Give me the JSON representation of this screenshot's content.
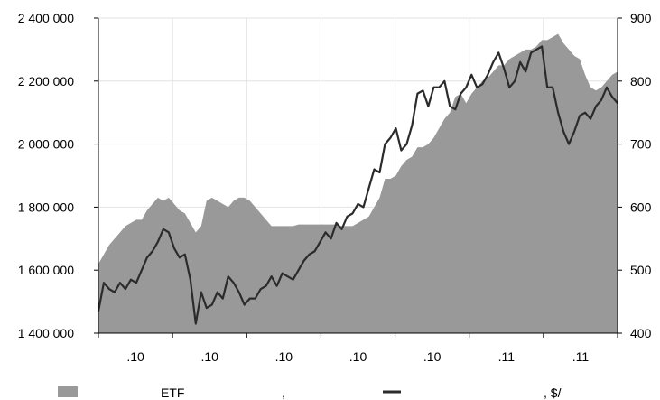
{
  "chart_data": {
    "type": "area+line",
    "title": "",
    "xlabel": "",
    "ylabel": "",
    "ylim": [
      1400000,
      2400000
    ],
    "ylim_right": [
      400,
      900
    ],
    "y_ticks": [
      1400000,
      1600000,
      1800000,
      2000000,
      2200000,
      2400000
    ],
    "y_tick_labels": [
      "1 400 000",
      "1 600 000",
      "1 800 000",
      "2 000 000",
      "2 200 000",
      "2 400 000"
    ],
    "y_right_ticks": [
      400,
      500,
      600,
      700,
      800,
      900
    ],
    "y_right_tick_labels": [
      "400",
      "500",
      "600",
      "700",
      "800",
      "900"
    ],
    "x_tick_labels": [
      ".10",
      ".10",
      ".10",
      ".10",
      ".10",
      ".11",
      ".11"
    ],
    "grid": true,
    "legend": {
      "position": "bottom",
      "entries": [
        {
          "label": "ETF",
          "extra": ",",
          "type": "area",
          "color": "#999999"
        },
        {
          "label": ", $/",
          "type": "line",
          "color": "#2b2b2b"
        }
      ]
    },
    "series": [
      {
        "type": "area",
        "axis": "left",
        "color": "#999999",
        "x": [
          0,
          1,
          2,
          3,
          4,
          5,
          6,
          7,
          8,
          9,
          10,
          11,
          12,
          13,
          14,
          15,
          16,
          17,
          18,
          19,
          20,
          21,
          22,
          23,
          24,
          25,
          26,
          27,
          28,
          29,
          30,
          31,
          32,
          33,
          34,
          35,
          36,
          37,
          38,
          39,
          40,
          41,
          42,
          43,
          44,
          45,
          46,
          47,
          48,
          49,
          50,
          51,
          52,
          53,
          54,
          55,
          56,
          57,
          58,
          59,
          60,
          61,
          62,
          63,
          64,
          65,
          66,
          67,
          68,
          69,
          70,
          71,
          72,
          73,
          74,
          75,
          76,
          77,
          78,
          79,
          80,
          81,
          82,
          83,
          84,
          85,
          86,
          87,
          88,
          89,
          90,
          91,
          92,
          93,
          94,
          95,
          96
        ],
        "values": [
          1620000,
          1650000,
          1680000,
          1700000,
          1720000,
          1740000,
          1750000,
          1760000,
          1760000,
          1790000,
          1810000,
          1830000,
          1820000,
          1830000,
          1810000,
          1790000,
          1780000,
          1750000,
          1720000,
          1740000,
          1820000,
          1830000,
          1820000,
          1810000,
          1800000,
          1820000,
          1830000,
          1830000,
          1820000,
          1800000,
          1780000,
          1760000,
          1740000,
          1740000,
          1740000,
          1740000,
          1740000,
          1745000,
          1745000,
          1745000,
          1745000,
          1745000,
          1745000,
          1745000,
          1745000,
          1740000,
          1740000,
          1740000,
          1750000,
          1760000,
          1770000,
          1800000,
          1830000,
          1890000,
          1890000,
          1900000,
          1930000,
          1950000,
          1960000,
          1990000,
          1990000,
          2000000,
          2020000,
          2050000,
          2080000,
          2100000,
          2150000,
          2160000,
          2130000,
          2160000,
          2180000,
          2200000,
          2210000,
          2230000,
          2250000,
          2250000,
          2270000,
          2280000,
          2290000,
          2300000,
          2300000,
          2310000,
          2330000,
          2330000,
          2340000,
          2350000,
          2320000,
          2300000,
          2280000,
          2270000,
          2220000,
          2180000,
          2170000,
          2180000,
          2200000,
          2220000,
          2230000
        ]
      },
      {
        "type": "line",
        "axis": "right",
        "color": "#2b2b2b",
        "x": [
          0,
          1,
          2,
          3,
          4,
          5,
          6,
          7,
          8,
          9,
          10,
          11,
          12,
          13,
          14,
          15,
          16,
          17,
          18,
          19,
          20,
          21,
          22,
          23,
          24,
          25,
          26,
          27,
          28,
          29,
          30,
          31,
          32,
          33,
          34,
          35,
          36,
          37,
          38,
          39,
          40,
          41,
          42,
          43,
          44,
          45,
          46,
          47,
          48,
          49,
          50,
          51,
          52,
          53,
          54,
          55,
          56,
          57,
          58,
          59,
          60,
          61,
          62,
          63,
          64,
          65,
          66,
          67,
          68,
          69,
          70,
          71,
          72,
          73,
          74,
          75,
          76,
          77,
          78,
          79,
          80,
          81,
          82,
          83,
          84,
          85,
          86,
          87,
          88,
          89,
          90,
          91,
          92,
          93,
          94,
          95,
          96
        ],
        "values": [
          435,
          480,
          470,
          465,
          480,
          470,
          485,
          480,
          500,
          520,
          530,
          545,
          565,
          560,
          535,
          520,
          525,
          485,
          415,
          465,
          440,
          445,
          465,
          455,
          490,
          480,
          465,
          445,
          455,
          455,
          470,
          475,
          490,
          475,
          495,
          490,
          485,
          500,
          515,
          525,
          530,
          545,
          560,
          550,
          575,
          565,
          585,
          590,
          605,
          600,
          630,
          660,
          655,
          700,
          710,
          725,
          690,
          700,
          730,
          780,
          785,
          760,
          790,
          790,
          800,
          760,
          755,
          780,
          790,
          810,
          790,
          795,
          810,
          830,
          845,
          820,
          790,
          800,
          830,
          815,
          845,
          850,
          855,
          790,
          790,
          750,
          720,
          700,
          720,
          745,
          750,
          740,
          760,
          770,
          790,
          775,
          765
        ]
      }
    ]
  }
}
